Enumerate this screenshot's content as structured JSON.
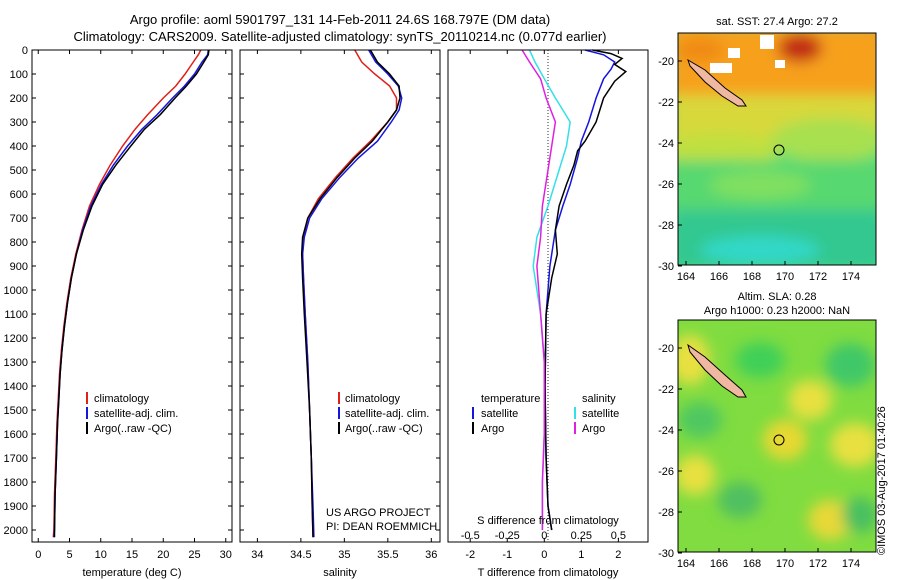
{
  "header": {
    "line1": "Argo profile: aoml 5901797_131 14-Feb-2011 24.6S 168.797E (DM data)",
    "line2": "Climatology: CARS2009. Satellite-adjusted climatology: synTS_20110214.nc (0.077d earlier)"
  },
  "colors": {
    "climatology": "#e0201b",
    "satellite": "#1515e0",
    "argo": "#000000",
    "satellite_diff": "#33e0e8",
    "argo_diff": "#e020e0"
  },
  "depth_axis": {
    "ylim": [
      0,
      2050
    ],
    "ticks": [
      0,
      100,
      200,
      300,
      400,
      500,
      600,
      700,
      800,
      900,
      1000,
      1100,
      1200,
      1300,
      1400,
      1500,
      1600,
      1700,
      1800,
      1900,
      2000
    ]
  },
  "chart_data": [
    {
      "type": "line",
      "id": "temperature",
      "xlabel": "temperature (deg C)",
      "xlim": [
        -1,
        31
      ],
      "xticks": [
        0,
        5,
        10,
        15,
        20,
        25,
        30
      ],
      "legend": [
        "climatology",
        "satellite-adj. clim.",
        "Argo(..raw -QC)"
      ],
      "series": [
        {
          "name": "climatology",
          "color_key": "climatology",
          "points": [
            [
              26,
              0
            ],
            [
              25.6,
              20
            ],
            [
              24.8,
              50
            ],
            [
              23.5,
              100
            ],
            [
              22,
              150
            ],
            [
              20,
              200
            ],
            [
              17.5,
              270
            ],
            [
              15.5,
              330
            ],
            [
              13.5,
              400
            ],
            [
              11.5,
              480
            ],
            [
              9.8,
              560
            ],
            [
              8.2,
              650
            ],
            [
              7,
              750
            ],
            [
              6,
              850
            ],
            [
              5.2,
              950
            ],
            [
              4.6,
              1050
            ],
            [
              4.1,
              1150
            ],
            [
              3.7,
              1250
            ],
            [
              3.4,
              1350
            ],
            [
              3.2,
              1450
            ],
            [
              3,
              1550
            ],
            [
              2.8,
              1700
            ],
            [
              2.6,
              1850
            ],
            [
              2.5,
              2000
            ],
            [
              2.4,
              2030
            ]
          ]
        },
        {
          "name": "satellite-adj. clim.",
          "color_key": "satellite",
          "points": [
            [
              27.2,
              0
            ],
            [
              27.1,
              20
            ],
            [
              26.2,
              50
            ],
            [
              25,
              100
            ],
            [
              23.4,
              150
            ],
            [
              21.5,
              200
            ],
            [
              19,
              270
            ],
            [
              16.6,
              330
            ],
            [
              14.3,
              400
            ],
            [
              12,
              480
            ],
            [
              10.1,
              560
            ],
            [
              8.4,
              650
            ],
            [
              7.1,
              750
            ],
            [
              6.1,
              850
            ],
            [
              5.3,
              950
            ],
            [
              4.7,
              1050
            ],
            [
              4.2,
              1150
            ],
            [
              3.8,
              1250
            ],
            [
              3.5,
              1350
            ],
            [
              3.3,
              1450
            ],
            [
              3.1,
              1550
            ],
            [
              2.9,
              1700
            ],
            [
              2.7,
              1850
            ],
            [
              2.6,
              2000
            ],
            [
              2.5,
              2030
            ]
          ]
        },
        {
          "name": "Argo(..raw -QC)",
          "color_key": "argo",
          "points": [
            [
              27.3,
              0
            ],
            [
              27.2,
              20
            ],
            [
              26.5,
              50
            ],
            [
              25.3,
              100
            ],
            [
              23.7,
              150
            ],
            [
              21.9,
              200
            ],
            [
              19.5,
              270
            ],
            [
              17,
              330
            ],
            [
              14.8,
              400
            ],
            [
              12.4,
              480
            ],
            [
              10.3,
              560
            ],
            [
              8.6,
              650
            ],
            [
              7.2,
              750
            ],
            [
              6.1,
              850
            ],
            [
              5.3,
              950
            ],
            [
              4.7,
              1050
            ],
            [
              4.2,
              1150
            ],
            [
              3.8,
              1250
            ],
            [
              3.5,
              1350
            ],
            [
              3.3,
              1450
            ],
            [
              3.1,
              1550
            ],
            [
              2.9,
              1700
            ],
            [
              2.7,
              1850
            ],
            [
              2.6,
              2000
            ],
            [
              2.6,
              2030
            ]
          ]
        }
      ]
    },
    {
      "type": "line",
      "id": "salinity",
      "xlabel": "salinity",
      "xlim": [
        33.8,
        36.1
      ],
      "xticks": [
        34,
        34.5,
        35,
        35.5,
        36
      ],
      "legend": [
        "climatology",
        "satellite-adj. clim.",
        "Argo(..raw -QC)"
      ],
      "annotation": [
        "US ARGO PROJECT",
        "PI: DEAN ROEMMICH"
      ],
      "series": [
        {
          "name": "climatology",
          "color_key": "climatology",
          "points": [
            [
              35.12,
              0
            ],
            [
              35.2,
              50
            ],
            [
              35.35,
              100
            ],
            [
              35.52,
              150
            ],
            [
              35.6,
              200
            ],
            [
              35.6,
              250
            ],
            [
              35.5,
              300
            ],
            [
              35.3,
              380
            ],
            [
              35.1,
              450
            ],
            [
              34.9,
              530
            ],
            [
              34.7,
              620
            ],
            [
              34.58,
              700
            ],
            [
              34.53,
              780
            ],
            [
              34.52,
              850
            ],
            [
              34.53,
              950
            ],
            [
              34.55,
              1100
            ],
            [
              34.58,
              1300
            ],
            [
              34.6,
              1500
            ],
            [
              34.62,
              1700
            ],
            [
              34.63,
              1900
            ],
            [
              34.64,
              2030
            ]
          ]
        },
        {
          "name": "satellite-adj. clim.",
          "color_key": "satellite",
          "points": [
            [
              35.28,
              0
            ],
            [
              35.36,
              50
            ],
            [
              35.5,
              100
            ],
            [
              35.62,
              150
            ],
            [
              35.66,
              200
            ],
            [
              35.63,
              250
            ],
            [
              35.54,
              300
            ],
            [
              35.38,
              380
            ],
            [
              35.16,
              450
            ],
            [
              34.95,
              530
            ],
            [
              34.74,
              620
            ],
            [
              34.6,
              700
            ],
            [
              34.54,
              780
            ],
            [
              34.52,
              850
            ],
            [
              34.53,
              950
            ],
            [
              34.55,
              1100
            ],
            [
              34.58,
              1300
            ],
            [
              34.6,
              1500
            ],
            [
              34.62,
              1700
            ],
            [
              34.64,
              1900
            ],
            [
              34.65,
              2030
            ]
          ]
        },
        {
          "name": "Argo(..raw -QC)",
          "color_key": "argo",
          "points": [
            [
              35.3,
              0
            ],
            [
              35.38,
              50
            ],
            [
              35.52,
              100
            ],
            [
              35.63,
              150
            ],
            [
              35.64,
              200
            ],
            [
              35.6,
              250
            ],
            [
              35.5,
              300
            ],
            [
              35.32,
              380
            ],
            [
              35.12,
              450
            ],
            [
              34.92,
              530
            ],
            [
              34.72,
              620
            ],
            [
              34.58,
              700
            ],
            [
              34.52,
              780
            ],
            [
              34.51,
              850
            ],
            [
              34.52,
              950
            ],
            [
              34.54,
              1100
            ],
            [
              34.57,
              1300
            ],
            [
              34.6,
              1500
            ],
            [
              34.62,
              1700
            ],
            [
              34.63,
              1900
            ],
            [
              34.64,
              2030
            ]
          ]
        }
      ]
    },
    {
      "type": "line",
      "id": "difference",
      "xlabel": "T difference from climatology",
      "xlabel_top": "S difference from climatology",
      "xlim": [
        -2.6,
        2.8
      ],
      "xticks": [
        -2,
        -1,
        0,
        1,
        2
      ],
      "xticklabels": [
        "-2",
        "-1",
        "0",
        "1",
        "2"
      ],
      "s_ticklabels": [
        "-0.5",
        "-0.25",
        "0",
        "0.25",
        "0.5"
      ],
      "legend_left_title": "temperature",
      "legend_right_title": "salinity",
      "legend_left": [
        "satellite",
        "Argo"
      ],
      "legend_right": [
        "satellite",
        "Argo"
      ],
      "series": [
        {
          "name": "T satellite",
          "color_key": "satellite",
          "points": [
            [
              1.1,
              0
            ],
            [
              1.6,
              20
            ],
            [
              1.9,
              50
            ],
            [
              1.8,
              80
            ],
            [
              1.6,
              120
            ],
            [
              1.4,
              200
            ],
            [
              1.2,
              300
            ],
            [
              1.0,
              380
            ],
            [
              0.9,
              450
            ],
            [
              0.7,
              560
            ],
            [
              0.5,
              650
            ],
            [
              0.3,
              750
            ],
            [
              0.15,
              900
            ],
            [
              0.05,
              1100
            ],
            [
              0.02,
              1400
            ],
            [
              0.05,
              1700
            ],
            [
              0.1,
              1900
            ],
            [
              0.2,
              2000
            ]
          ]
        },
        {
          "name": "T Argo",
          "color_key": "argo",
          "points": [
            [
              1.3,
              0
            ],
            [
              1.8,
              15
            ],
            [
              2.1,
              35
            ],
            [
              1.9,
              60
            ],
            [
              2.2,
              90
            ],
            [
              1.9,
              130
            ],
            [
              1.6,
              200
            ],
            [
              1.4,
              300
            ],
            [
              1.1,
              380
            ],
            [
              0.9,
              420
            ],
            [
              0.8,
              480
            ],
            [
              0.6,
              560
            ],
            [
              0.4,
              650
            ],
            [
              0.3,
              750
            ],
            [
              0.35,
              850
            ],
            [
              0.2,
              950
            ],
            [
              0.05,
              1100
            ],
            [
              0.02,
              1400
            ],
            [
              0.05,
              1700
            ],
            [
              0.1,
              1900
            ],
            [
              0.2,
              2000
            ]
          ]
        },
        {
          "name": "S satellite",
          "color_key": "satellite_diff",
          "points": [
            [
              -0.4,
              0
            ],
            [
              -0.25,
              50
            ],
            [
              0,
              120
            ],
            [
              0.3,
              200
            ],
            [
              0.7,
              300
            ],
            [
              0.6,
              400
            ],
            [
              0.4,
              500
            ],
            [
              0.1,
              650
            ],
            [
              -0.2,
              780
            ],
            [
              -0.3,
              900
            ],
            [
              -0.1,
              1100
            ],
            [
              0,
              1300
            ],
            [
              0,
              1600
            ],
            [
              -0.05,
              1800
            ],
            [
              -0.05,
              2000
            ]
          ]
        },
        {
          "name": "S Argo",
          "color_key": "argo_diff",
          "points": [
            [
              -0.6,
              0
            ],
            [
              -0.4,
              50
            ],
            [
              -0.1,
              120
            ],
            [
              0.05,
              200
            ],
            [
              0.3,
              300
            ],
            [
              0.2,
              400
            ],
            [
              0.1,
              500
            ],
            [
              -0.05,
              650
            ],
            [
              -0.1,
              780
            ],
            [
              -0.2,
              900
            ],
            [
              -0.1,
              1100
            ],
            [
              0,
              1300
            ],
            [
              0,
              1600
            ],
            [
              -0.05,
              1800
            ],
            [
              -0.05,
              2000
            ]
          ]
        }
      ]
    }
  ],
  "maps": [
    {
      "id": "sst",
      "title1": "sat. SST: 27.4 Argo: 27.2",
      "title2": "",
      "xticks": [
        "164",
        "166",
        "168",
        "170",
        "172",
        "174"
      ],
      "yticks": [
        "-20",
        "-22",
        "-24",
        "-26",
        "-28",
        "-30"
      ]
    },
    {
      "id": "sla",
      "title1": "Altim. SLA: 0.28",
      "title2": "Argo h1000: 0.23 h2000: NaN",
      "xticks": [
        "164",
        "166",
        "168",
        "170",
        "172",
        "174"
      ],
      "yticks": [
        "-20",
        "-22",
        "-24",
        "-26",
        "-28",
        "-30"
      ]
    }
  ],
  "stamp": "©IMOS 03-Aug-2017 01:40:26"
}
